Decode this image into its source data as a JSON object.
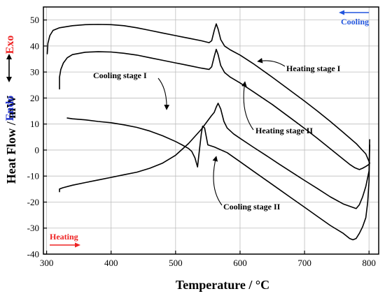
{
  "chart_data": {
    "type": "line",
    "xlabel": "Temperature / °C",
    "ylabel": "Heat Flow / mW",
    "xlim": [
      295,
      815
    ],
    "ylim": [
      -40,
      55
    ],
    "x_ticks": [
      300,
      400,
      500,
      600,
      700,
      800
    ],
    "y_ticks": [
      -40,
      -30,
      -20,
      -10,
      0,
      10,
      20,
      30,
      40,
      50
    ],
    "grid": true,
    "side_labels": {
      "exo": "Exo",
      "endo": "Endo"
    },
    "direction_labels": {
      "cooling": "Cooling",
      "heating": "Heating"
    },
    "colors": {
      "exo": "#ee2222",
      "endo": "#2233cc",
      "cooling": "#2255dd",
      "heating": "#ee2222",
      "curve": "#000000",
      "grid": "#bdbdbd"
    },
    "series": [
      {
        "name": "Heating stage I",
        "x": [
          301,
          302,
          305,
          310,
          320,
          340,
          360,
          380,
          400,
          420,
          440,
          460,
          480,
          500,
          520,
          540,
          552,
          556,
          560,
          563,
          566,
          570,
          576,
          585,
          600,
          620,
          650,
          680,
          700,
          720,
          740,
          760,
          780,
          795,
          801
        ],
        "y": [
          37,
          41,
          44,
          46,
          47,
          47.8,
          48.2,
          48.3,
          48.2,
          47.8,
          47,
          46,
          45,
          44,
          43,
          42,
          41.3,
          42,
          46,
          48.5,
          46.5,
          42.5,
          40,
          38.5,
          36.5,
          33.3,
          28,
          22.5,
          18.8,
          15,
          11,
          6.8,
          2.5,
          -1.5,
          -5
        ]
      },
      {
        "name": "Cooling stage I",
        "x": [
          801,
          800,
          795,
          790,
          785,
          780,
          760,
          740,
          720,
          700,
          680,
          660,
          640,
          620,
          600,
          590,
          580,
          575,
          570,
          566,
          563,
          560,
          555,
          540,
          520,
          500,
          480,
          460,
          440,
          420,
          400,
          380,
          360,
          340,
          325,
          320,
          320
        ],
        "y": [
          4,
          -8,
          -14,
          -18,
          -21,
          -22.5,
          -20.7,
          -18,
          -14.8,
          -11.7,
          -8.5,
          -5.3,
          -2,
          1.2,
          4.5,
          6.2,
          8.5,
          11,
          15.8,
          18,
          16.5,
          14.5,
          13,
          8,
          2.5,
          -2,
          -5,
          -7,
          -8.5,
          -9.5,
          -10.5,
          -11.5,
          -12.5,
          -13.5,
          -14.5,
          -15,
          -16
        ]
      },
      {
        "name": "Heating stage II",
        "x": [
          320,
          320,
          322,
          326,
          332,
          340,
          360,
          380,
          400,
          420,
          440,
          460,
          480,
          500,
          520,
          540,
          552,
          556,
          560,
          563,
          566,
          570,
          576,
          585,
          600,
          620,
          650,
          680,
          700,
          720,
          740,
          760,
          770,
          778,
          785,
          790,
          795,
          800,
          801
        ],
        "y": [
          23.5,
          28,
          31,
          33.5,
          35.5,
          36.7,
          37.6,
          37.8,
          37.7,
          37.2,
          36.5,
          35.5,
          34.5,
          33.5,
          32.5,
          31.5,
          31,
          32,
          36,
          38.7,
          36.7,
          32.5,
          29.8,
          28,
          25.8,
          22.5,
          17.5,
          12,
          8.3,
          4.5,
          0.5,
          -3.5,
          -5.5,
          -6.8,
          -7.5,
          -7,
          -6.3,
          -5.5,
          -5
        ]
      },
      {
        "name": "Cooling stage II",
        "x": [
          801,
          800,
          798,
          795,
          790,
          785,
          780,
          775,
          770,
          760,
          740,
          720,
          700,
          680,
          660,
          640,
          620,
          600,
          580,
          560,
          550,
          545,
          542,
          540,
          537,
          534,
          530,
          525,
          520,
          510,
          500,
          480,
          460,
          440,
          420,
          400,
          380,
          360,
          340,
          332
        ],
        "y": [
          2,
          -12,
          -20,
          -26,
          -29.5,
          -32,
          -34,
          -34.5,
          -34,
          -32,
          -29,
          -25.5,
          -22,
          -18.5,
          -15,
          -11.5,
          -8,
          -4.5,
          -1,
          1.2,
          2,
          8.5,
          9.2,
          6.5,
          0,
          -6.5,
          -3,
          -0.5,
          0.6,
          2,
          3.3,
          5.5,
          7.3,
          8.7,
          9.7,
          10.5,
          11,
          11.6,
          12,
          12.3
        ]
      }
    ],
    "annotations": [
      {
        "text": "Heating stage I"
      },
      {
        "text": "Cooling stage I"
      },
      {
        "text": "Heating stage II"
      },
      {
        "text": "Cooling stage II"
      }
    ]
  }
}
